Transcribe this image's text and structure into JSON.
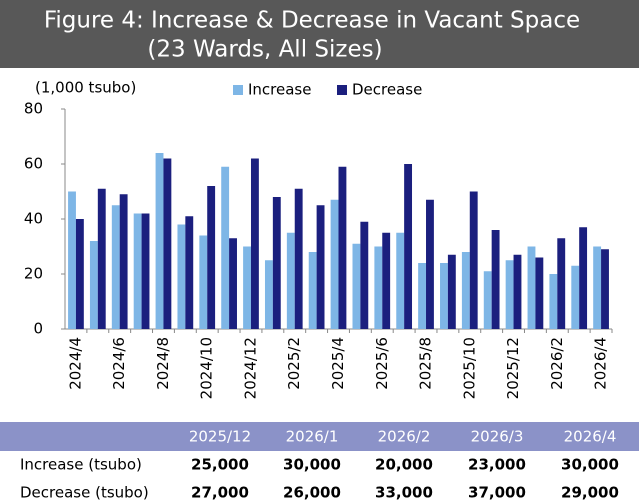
{
  "chart_data": {
    "type": "bar",
    "title": "Figure 4: Increase & Decrease in Vacant Space",
    "subtitle": "(23 Wards, All Sizes)",
    "y_label": "(1,000 tsubo)",
    "categories": [
      "2024/4",
      null,
      "2024/6",
      null,
      "2024/8",
      null,
      "2024/10",
      null,
      "2024/12",
      null,
      "2025/2",
      null,
      "2025/4",
      null,
      "2025/6",
      null,
      "2025/8",
      null,
      "2025/10",
      null,
      "2025/12",
      null,
      "2026/2",
      null,
      "2026/4"
    ],
    "series": [
      {
        "name": "Increase",
        "color": "#7eb6e6",
        "values": [
          50,
          32,
          45,
          42,
          64,
          38,
          34,
          59,
          30,
          25,
          35,
          28,
          47,
          31,
          30,
          35,
          24,
          24,
          28,
          21,
          25,
          30,
          20,
          23,
          30
        ]
      },
      {
        "name": "Decrease",
        "color": "#1b1f7e",
        "values": [
          40,
          51,
          49,
          42,
          62,
          41,
          52,
          33,
          62,
          48,
          51,
          45,
          59,
          39,
          35,
          60,
          47,
          27,
          50,
          36,
          27,
          26,
          33,
          37,
          29
        ]
      }
    ],
    "ylim": [
      0,
      80
    ],
    "yticks": [
      0,
      20,
      40,
      60,
      80
    ],
    "grid": false,
    "legend": "top"
  },
  "table": {
    "columns": [
      "2025/12",
      "2026/1",
      "2026/2",
      "2026/3",
      "2026/4"
    ],
    "rows": [
      {
        "label": "Increase (tsubo)",
        "values": [
          "25,000",
          "30,000",
          "20,000",
          "23,000",
          "30,000"
        ]
      },
      {
        "label": "Decrease (tsubo)",
        "values": [
          "27,000",
          "26,000",
          "33,000",
          "37,000",
          "29,000"
        ]
      }
    ]
  }
}
